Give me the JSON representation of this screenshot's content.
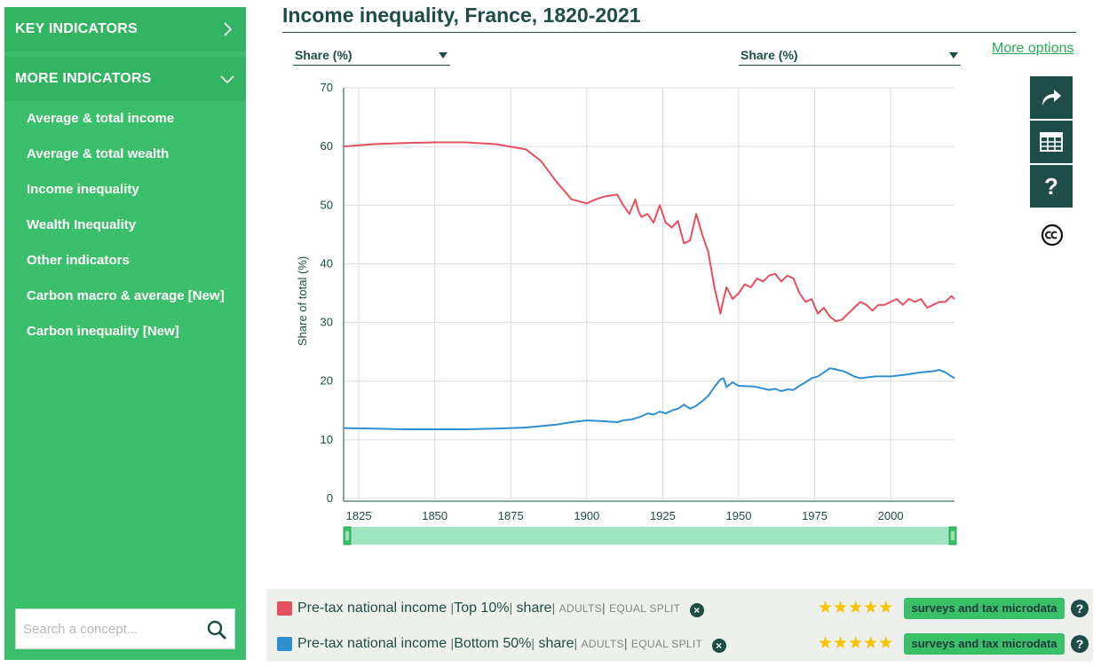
{
  "sidebar": {
    "key_indicators_label": "KEY INDICATORS",
    "more_indicators_label": "MORE INDICATORS",
    "items": [
      {
        "label": "Average & total income"
      },
      {
        "label": "Average & total wealth"
      },
      {
        "label": "Income inequality"
      },
      {
        "label": "Wealth Inequality"
      },
      {
        "label": "Other indicators"
      },
      {
        "label": "Carbon macro & average [New]"
      },
      {
        "label": "Carbon inequality [New]"
      }
    ],
    "search_placeholder": "Search a concept..."
  },
  "header": {
    "title": "Income inequality, France, 1820-2021",
    "left_axis_select": "Share (%)",
    "right_axis_select": "Share (%)",
    "more_options": "More options"
  },
  "toolbar": {
    "share_icon": "share-arrow-icon",
    "table_icon": "table-icon",
    "help_label": "?",
    "cc_icon": "creative-commons-icon"
  },
  "chart_data": {
    "type": "line",
    "ylabel": "Share of total (%)",
    "ylim": [
      0,
      70
    ],
    "yticks": [
      0,
      10,
      20,
      30,
      40,
      50,
      60,
      70
    ],
    "xlim": [
      1820,
      2021
    ],
    "xticks": [
      1825,
      1850,
      1875,
      1900,
      1925,
      1950,
      1975,
      2000
    ],
    "grid": true,
    "series": [
      {
        "name": "Pre-tax national income | Top 10% | share",
        "color": "#e4505e",
        "x": [
          1820,
          1830,
          1840,
          1850,
          1860,
          1870,
          1880,
          1885,
          1890,
          1895,
          1900,
          1903,
          1906,
          1910,
          1912,
          1914,
          1916,
          1917,
          1918,
          1920,
          1922,
          1924,
          1926,
          1928,
          1930,
          1932,
          1934,
          1936,
          1938,
          1940,
          1942,
          1944,
          1945,
          1946,
          1948,
          1950,
          1952,
          1954,
          1956,
          1958,
          1960,
          1962,
          1964,
          1966,
          1968,
          1970,
          1972,
          1974,
          1976,
          1978,
          1980,
          1982,
          1984,
          1986,
          1988,
          1990,
          1992,
          1994,
          1996,
          1998,
          2000,
          2002,
          2004,
          2006,
          2008,
          2010,
          2012,
          2014,
          2016,
          2018,
          2020,
          2021
        ],
        "y": [
          60,
          60.4,
          60.6,
          60.7,
          60.7,
          60.4,
          59.5,
          57.5,
          54,
          51,
          50.3,
          51,
          51.5,
          51.8,
          50,
          48.5,
          51,
          49,
          48,
          48.5,
          47,
          50,
          47,
          46.2,
          47.3,
          43.5,
          44,
          48.5,
          45,
          42,
          36,
          31.5,
          34,
          36,
          34,
          35,
          36.5,
          36,
          37.5,
          37,
          38,
          38.3,
          37,
          38,
          37.5,
          35,
          33.5,
          34,
          31.5,
          32.5,
          31,
          30.2,
          30.5,
          31.5,
          32.5,
          33.5,
          33,
          32,
          33,
          33,
          33.5,
          34,
          33,
          34,
          33.5,
          34,
          32.5,
          33,
          33.5,
          33.5,
          34.5,
          34
        ]
      },
      {
        "name": "Pre-tax national income | Bottom 50% | share",
        "color": "#2d8fd0",
        "x": [
          1820,
          1830,
          1840,
          1850,
          1860,
          1870,
          1880,
          1890,
          1895,
          1900,
          1905,
          1910,
          1912,
          1915,
          1918,
          1920,
          1922,
          1924,
          1926,
          1928,
          1930,
          1932,
          1934,
          1936,
          1938,
          1940,
          1942,
          1944,
          1945,
          1946,
          1948,
          1950,
          1955,
          1960,
          1962,
          1964,
          1966,
          1968,
          1970,
          1972,
          1974,
          1976,
          1978,
          1980,
          1982,
          1985,
          1988,
          1990,
          1995,
          2000,
          2005,
          2010,
          2012,
          2014,
          2016,
          2018,
          2020,
          2021
        ],
        "y": [
          12,
          11.9,
          11.8,
          11.8,
          11.8,
          11.9,
          12.1,
          12.6,
          13,
          13.3,
          13.2,
          13,
          13.3,
          13.5,
          14,
          14.5,
          14.3,
          14.8,
          14.5,
          15,
          15.3,
          16,
          15.3,
          15.8,
          16.6,
          17.5,
          19,
          20.3,
          20.5,
          19,
          19.8,
          19.2,
          19.1,
          18.5,
          18.7,
          18.3,
          18.6,
          18.5,
          19.2,
          19.8,
          20.5,
          20.8,
          21.5,
          22.2,
          22,
          21.6,
          20.8,
          20.5,
          20.8,
          20.8,
          21.1,
          21.5,
          21.6,
          21.7,
          21.9,
          21.5,
          20.8,
          20.5
        ]
      }
    ]
  },
  "legend": {
    "rows": [
      {
        "color": "#e4505e",
        "concept": "Pre-tax national income",
        "group": "Top 10%",
        "variable": "share",
        "pop": "ADULTS",
        "unit": "EQUAL SPLIT",
        "stars": "★★★★★",
        "source": "surveys and tax microdata"
      },
      {
        "color": "#2d8fd0",
        "concept": "Pre-tax national income",
        "group": "Bottom 50%",
        "variable": "share",
        "pop": "ADULTS",
        "unit": "EQUAL SPLIT",
        "stars": "★★★★★",
        "source": "surveys and tax microdata"
      }
    ]
  }
}
